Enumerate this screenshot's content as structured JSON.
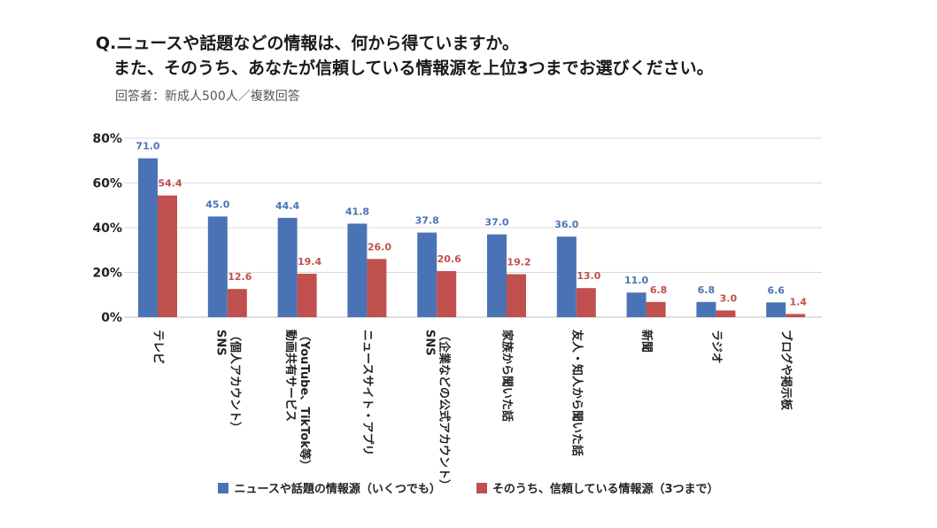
{
  "header": {
    "title_line1": "Q.ニュースや話題などの情報は、何から得ていますか。",
    "title_line2": "また、そのうち、あなたが信頼している情報源を上位3つまでお選びください。",
    "subtitle": "回答者：新成人500人／複数回答"
  },
  "colors": {
    "series1": "#4a73b5",
    "series2": "#c0504d",
    "grid": "#d9d9d9"
  },
  "chart_data": {
    "type": "bar",
    "title": "Q.ニュースや話題などの情報は、何から得ていますか。",
    "xlabel": "",
    "ylabel": "",
    "ylim": [
      0,
      80
    ],
    "yticks": [
      0,
      20,
      40,
      60,
      80
    ],
    "ytick_labels": [
      "0%",
      "20%",
      "40%",
      "60%",
      "80%"
    ],
    "grid": true,
    "legend_position": "bottom",
    "categories": [
      [
        "テレビ"
      ],
      [
        "SNS",
        "（個人アカウント）"
      ],
      [
        "動画共有サービス",
        "（YouTube、TikTok等）"
      ],
      [
        "ニュースサイト・アプリ"
      ],
      [
        "SNS",
        "（企業などの公式アカウント）"
      ],
      [
        "家族から聞いた話"
      ],
      [
        "友人・知人から聞いた話"
      ],
      [
        "新聞"
      ],
      [
        "ラジオ"
      ],
      [
        "ブログや掲示板"
      ]
    ],
    "series": [
      {
        "name": "ニュースや話題の情報源（いくつでも）",
        "values": [
          71.0,
          45.0,
          44.4,
          41.8,
          37.8,
          37.0,
          36.0,
          11.0,
          6.8,
          6.6
        ],
        "labels": [
          "71.0",
          "45.0",
          "44.4",
          "41.8",
          "37.8",
          "37.0",
          "36.0",
          "11.0",
          "6.8",
          "6.6"
        ]
      },
      {
        "name": "そのうち、信頼している情報源（3つまで）",
        "values": [
          54.4,
          12.6,
          19.4,
          26.0,
          20.6,
          19.2,
          13.0,
          6.8,
          3.0,
          1.4
        ],
        "labels": [
          "54.4",
          "12.6",
          "19.4",
          "26.0",
          "20.6",
          "19.2",
          "13.0",
          "6.8",
          "3.0",
          "1.4"
        ]
      }
    ]
  }
}
